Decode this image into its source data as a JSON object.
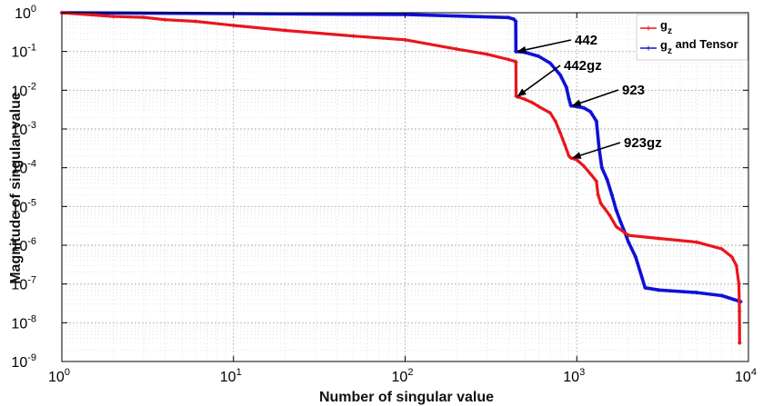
{
  "chart_data": {
    "type": "line",
    "xscale": "log",
    "yscale": "log",
    "xlim": [
      1,
      10000
    ],
    "ylim": [
      1e-09,
      1
    ],
    "grid": true,
    "legend_position": "top-right",
    "xlabel": "Number of singular value",
    "ylabel": "Magnitude of singular value",
    "x_ticks": [
      {
        "value": 1,
        "base": "10",
        "exp": "0"
      },
      {
        "value": 10,
        "base": "10",
        "exp": "1"
      },
      {
        "value": 100,
        "base": "10",
        "exp": "2"
      },
      {
        "value": 1000,
        "base": "10",
        "exp": "3"
      },
      {
        "value": 10000,
        "base": "10",
        "exp": "4"
      }
    ],
    "y_ticks": [
      {
        "value": 1,
        "base": "10",
        "exp": "0"
      },
      {
        "value": 0.1,
        "base": "10",
        "exp": "-1"
      },
      {
        "value": 0.01,
        "base": "10",
        "exp": "-2"
      },
      {
        "value": 0.001,
        "base": "10",
        "exp": "-3"
      },
      {
        "value": 0.0001,
        "base": "10",
        "exp": "-4"
      },
      {
        "value": 1e-05,
        "base": "10",
        "exp": "-5"
      },
      {
        "value": 1e-06,
        "base": "10",
        "exp": "-6"
      },
      {
        "value": 1e-07,
        "base": "10",
        "exp": "-7"
      },
      {
        "value": 1e-08,
        "base": "10",
        "exp": "-8"
      },
      {
        "value": 1e-09,
        "base": "10",
        "exp": "-9"
      }
    ],
    "series": [
      {
        "name": "g",
        "name_sub": "z",
        "color": "#e8161b",
        "x": [
          1,
          2,
          3,
          4,
          6,
          10,
          20,
          50,
          100,
          200,
          300,
          400,
          440,
          442,
          443,
          450,
          500,
          550,
          600,
          700,
          750,
          800,
          850,
          900,
          923,
          1000,
          1100,
          1200,
          1300,
          1330,
          1380,
          1450,
          1550,
          1700,
          2000,
          3000,
          5000,
          7000,
          8000,
          8500,
          8800,
          8860,
          8880
        ],
        "y": [
          1,
          0.8,
          0.76,
          0.66,
          0.6,
          0.47,
          0.35,
          0.25,
          0.2,
          0.115,
          0.085,
          0.062,
          0.055,
          0.052,
          0.007,
          0.0068,
          0.0058,
          0.0048,
          0.0038,
          0.0026,
          0.0016,
          0.0008,
          0.0004,
          0.0002,
          0.00018,
          0.00016,
          0.00011,
          7e-05,
          4.5e-05,
          2e-05,
          1.2e-05,
          9e-06,
          6e-06,
          3e-06,
          1.8e-06,
          1.5e-06,
          1.2e-06,
          8e-07,
          5e-07,
          3e-07,
          1e-07,
          2e-08,
          3e-09
        ]
      },
      {
        "name": "g",
        "name_sub": "z",
        "name_suffix": " and Tensor",
        "color": "#1010d8",
        "x": [
          1,
          10,
          100,
          400,
          430,
          441,
          442,
          443,
          500,
          600,
          700,
          800,
          870,
          900,
          923,
          1000,
          1100,
          1200,
          1300,
          1350,
          1400,
          1500,
          1600,
          1700,
          1800,
          1900,
          2000,
          2200,
          2500,
          3000,
          5000,
          7000,
          9000
        ],
        "y": [
          1,
          0.95,
          0.9,
          0.75,
          0.68,
          0.6,
          0.1,
          0.1,
          0.095,
          0.075,
          0.05,
          0.025,
          0.012,
          0.006,
          0.004,
          0.0038,
          0.0035,
          0.0028,
          0.0016,
          0.0003,
          0.0001,
          5e-05,
          2e-05,
          8e-06,
          4e-06,
          2.2e-06,
          1.2e-06,
          5e-07,
          8e-08,
          7e-08,
          6e-08,
          5e-08,
          3.5e-08
        ]
      }
    ],
    "annotations": [
      {
        "text": "442",
        "point_x": 442,
        "point_y": 0.1
      },
      {
        "text": "442gz",
        "point_x": 442,
        "point_y": 0.007
      },
      {
        "text": "923",
        "point_x": 923,
        "point_y": 0.004
      },
      {
        "text": "923gz",
        "point_x": 923,
        "point_y": 0.00018
      }
    ]
  }
}
